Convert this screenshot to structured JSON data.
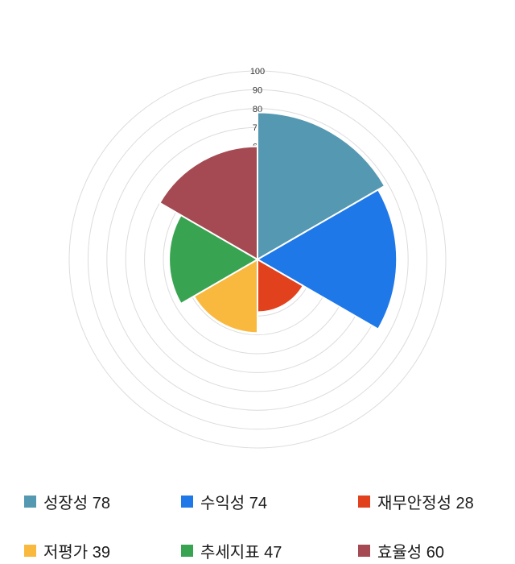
{
  "chart_data": {
    "type": "polar-area",
    "title": "",
    "categories": [
      "성장성",
      "수익성",
      "재무안정성",
      "저평가",
      "추세지표",
      "효율성"
    ],
    "values": [
      78,
      74,
      28,
      39,
      47,
      60
    ],
    "colors": [
      "#5598B2",
      "#1E78E8",
      "#E2411D",
      "#F9B93E",
      "#38A452",
      "#A54A52"
    ],
    "rmax": 100,
    "ticks": [
      10,
      20,
      30,
      40,
      50,
      60,
      70,
      80,
      90,
      100
    ],
    "start_angle_deg": 0,
    "direction": "clockwise",
    "grid": "on",
    "grid_color": "#DCDCDC",
    "legend_position": "bottom"
  },
  "legend": {
    "items": [
      {
        "label": "성장성",
        "value": 78,
        "text": "성장성 78",
        "color": "#5598B2"
      },
      {
        "label": "수익성",
        "value": 74,
        "text": "수익성 74",
        "color": "#1E78E8"
      },
      {
        "label": "재무안정성",
        "value": 28,
        "text": "재무안정성 28",
        "color": "#E2411D"
      },
      {
        "label": "저평가",
        "value": 39,
        "text": "저평가 39",
        "color": "#F9B93E"
      },
      {
        "label": "추세지표",
        "value": 47,
        "text": "추세지표 47",
        "color": "#38A452"
      },
      {
        "label": "효율성",
        "value": 60,
        "text": "효율성 60",
        "color": "#A54A52"
      }
    ]
  }
}
